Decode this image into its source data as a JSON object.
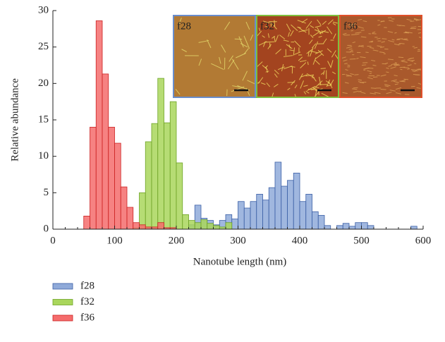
{
  "chart_data": {
    "type": "histogram",
    "x_label": "Nanotube length (nm)",
    "y_label": "Relative abundance",
    "xlim": [
      0,
      600
    ],
    "xticks": [
      0,
      100,
      200,
      300,
      400,
      500,
      600
    ],
    "ylim": [
      0,
      30
    ],
    "yticks": [
      0,
      5,
      10,
      15,
      20,
      25,
      30
    ],
    "series": [
      {
        "name": "f28",
        "color": "#8faad9",
        "bins": [
          220,
          230,
          240,
          250,
          260,
          270,
          280,
          290,
          300,
          310,
          320,
          330,
          340,
          350,
          360,
          370,
          380,
          390,
          400,
          410,
          420,
          430,
          440,
          450,
          460,
          470,
          480,
          490,
          500,
          510,
          520,
          530,
          540,
          550,
          560,
          570,
          580,
          590
        ],
        "values": [
          0.6,
          3.3,
          1.5,
          1.2,
          0.6,
          1.2,
          2,
          1.4,
          3.8,
          2.9,
          3.8,
          4.8,
          4,
          5.7,
          9.2,
          5.9,
          6.7,
          7.7,
          3.8,
          4.8,
          2.4,
          1.9,
          0.5,
          0,
          0.5,
          0.8,
          0.4,
          0.9,
          0.9,
          0.5,
          0,
          0,
          0,
          0,
          0,
          0,
          0.4
        ]
      },
      {
        "name": "f32",
        "color": "#a9d65c",
        "bins": [
          130,
          140,
          150,
          160,
          170,
          180,
          190,
          200,
          210,
          220,
          230,
          240,
          250,
          260,
          270,
          280,
          290
        ],
        "values": [
          0.2,
          5,
          12,
          14.5,
          20.7,
          14.6,
          17.5,
          9.1,
          2,
          1.2,
          0.9,
          1.3,
          0.8,
          0.5,
          0.3,
          0.9
        ]
      },
      {
        "name": "f36",
        "color": "#f56c6c",
        "bins": [
          50,
          60,
          70,
          80,
          90,
          100,
          110,
          120,
          130,
          140,
          150,
          160,
          170,
          180,
          190,
          200
        ],
        "values": [
          1.8,
          14,
          28.6,
          21.3,
          14,
          11.8,
          5.8,
          3,
          0.9,
          0.6,
          0.3,
          0.3,
          0.9,
          0.2,
          0.2
        ]
      }
    ],
    "insets": [
      "f28",
      "f32",
      "f36"
    ]
  }
}
